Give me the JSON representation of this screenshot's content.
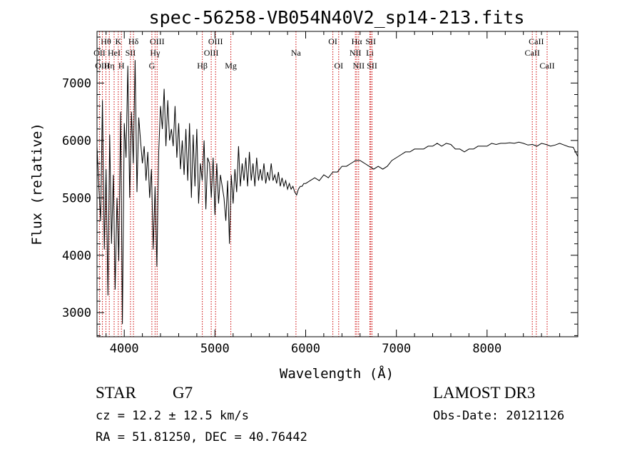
{
  "chart_data": {
    "type": "line",
    "title": "spec-56258-VB054N40V2_sp14-213.fits",
    "xlabel": "Wavelength (Å)",
    "ylabel": "Flux (relative)",
    "xlim": [
      3700,
      9000
    ],
    "ylim": [
      2580,
      7900
    ],
    "xticks": [
      4000,
      5000,
      6000,
      7000,
      8000
    ],
    "yticks": [
      3000,
      4000,
      5000,
      6000,
      7000
    ],
    "series": [
      {
        "name": "spectrum",
        "x": [
          3700,
          3720,
          3740,
          3760,
          3780,
          3800,
          3820,
          3840,
          3860,
          3880,
          3900,
          3920,
          3940,
          3960,
          3980,
          4000,
          4020,
          4040,
          4060,
          4080,
          4100,
          4120,
          4140,
          4160,
          4180,
          4200,
          4220,
          4240,
          4260,
          4280,
          4300,
          4320,
          4340,
          4360,
          4380,
          4400,
          4420,
          4440,
          4460,
          4480,
          4500,
          4520,
          4540,
          4560,
          4580,
          4600,
          4620,
          4640,
          4660,
          4680,
          4700,
          4720,
          4740,
          4760,
          4780,
          4800,
          4820,
          4840,
          4860,
          4880,
          4900,
          4920,
          4940,
          4960,
          4980,
          5000,
          5020,
          5040,
          5060,
          5080,
          5100,
          5120,
          5140,
          5160,
          5180,
          5200,
          5220,
          5240,
          5260,
          5280,
          5300,
          5320,
          5340,
          5360,
          5380,
          5400,
          5420,
          5440,
          5460,
          5480,
          5500,
          5520,
          5540,
          5560,
          5580,
          5600,
          5620,
          5640,
          5660,
          5680,
          5700,
          5720,
          5740,
          5760,
          5780,
          5800,
          5820,
          5840,
          5860,
          5880,
          5900,
          5920,
          5940,
          5960,
          5980,
          6000,
          6050,
          6100,
          6150,
          6200,
          6250,
          6300,
          6350,
          6400,
          6450,
          6500,
          6550,
          6600,
          6650,
          6700,
          6750,
          6800,
          6850,
          6900,
          6950,
          7000,
          7050,
          7100,
          7150,
          7200,
          7250,
          7300,
          7350,
          7400,
          7450,
          7500,
          7550,
          7600,
          7650,
          7700,
          7750,
          7800,
          7850,
          7900,
          7950,
          8000,
          8050,
          8100,
          8150,
          8200,
          8250,
          8300,
          8350,
          8400,
          8450,
          8500,
          8550,
          8600,
          8650,
          8700,
          8750,
          8800,
          8850,
          8900,
          8950,
          9000
        ],
        "y": [
          5900,
          5200,
          4600,
          6700,
          4100,
          5500,
          3300,
          6100,
          4200,
          5400,
          3400,
          5000,
          3900,
          6500,
          2800,
          6300,
          5700,
          7300,
          5000,
          6500,
          5600,
          7400,
          5100,
          6400,
          6000,
          5600,
          5900,
          5300,
          5800,
          5000,
          5500,
          4100,
          5200,
          3800,
          5800,
          6600,
          6200,
          6900,
          5900,
          6700,
          6000,
          6200,
          5900,
          6600,
          5700,
          6300,
          5500,
          6000,
          5400,
          6200,
          5300,
          6300,
          5000,
          6100,
          5200,
          6200,
          4900,
          5600,
          5300,
          6000,
          4800,
          5700,
          5600,
          5000,
          5700,
          4700,
          5600,
          4900,
          5400,
          5200,
          5000,
          4600,
          5300,
          4200,
          5400,
          4900,
          5500,
          5100,
          5900,
          5200,
          5600,
          5300,
          5700,
          5200,
          5800,
          5300,
          5600,
          5200,
          5700,
          5300,
          5500,
          5300,
          5600,
          5250,
          5450,
          5300,
          5600,
          5300,
          5400,
          5250,
          5450,
          5200,
          5350,
          5200,
          5300,
          5150,
          5250,
          5150,
          5200,
          5100,
          5050,
          5150,
          5200,
          5200,
          5250,
          5250,
          5300,
          5350,
          5300,
          5400,
          5350,
          5450,
          5450,
          5550,
          5550,
          5600,
          5650,
          5650,
          5600,
          5550,
          5500,
          5550,
          5500,
          5550,
          5650,
          5700,
          5750,
          5800,
          5800,
          5850,
          5850,
          5850,
          5900,
          5900,
          5950,
          5900,
          5950,
          5930,
          5850,
          5850,
          5800,
          5850,
          5850,
          5900,
          5900,
          5900,
          5950,
          5930,
          5950,
          5950,
          5960,
          5950,
          5970,
          5950,
          5920,
          5930,
          5900,
          5950,
          5930,
          5900,
          5920,
          5950,
          5920,
          5890,
          5880,
          5720
        ]
      }
    ],
    "line_markers": [
      {
        "label": "Hθ",
        "wavelength": 3798,
        "row": 0
      },
      {
        "label": "OII",
        "wavelength": 3727,
        "row": 1
      },
      {
        "label": "OIII",
        "wavelength": 3760,
        "row": 2
      },
      {
        "label": "Hη",
        "wavelength": 3835,
        "row": 2
      },
      {
        "label": "HeI",
        "wavelength": 3889,
        "row": 1
      },
      {
        "label": "K",
        "wavelength": 3934,
        "row": 0
      },
      {
        "label": "H",
        "wavelength": 3969,
        "row": 2
      },
      {
        "label": "SII",
        "wavelength": 4069,
        "row": 1
      },
      {
        "label": "Hδ",
        "wavelength": 4102,
        "row": 0
      },
      {
        "label": "OIII",
        "wavelength": 4363,
        "row": 0
      },
      {
        "label": "Hγ",
        "wavelength": 4340,
        "row": 1
      },
      {
        "label": "G",
        "wavelength": 4305,
        "row": 2
      },
      {
        "label": "Hβ",
        "wavelength": 4861,
        "row": 2
      },
      {
        "label": "OIII",
        "wavelength": 5007,
        "row": 0
      },
      {
        "label": "OIII",
        "wavelength": 4959,
        "row": 1
      },
      {
        "label": "Mg",
        "wavelength": 5175,
        "row": 2
      },
      {
        "label": "Na",
        "wavelength": 5893,
        "row": 1
      },
      {
        "label": "OI",
        "wavelength": 6300,
        "row": 0
      },
      {
        "label": "OI",
        "wavelength": 6364,
        "row": 2
      },
      {
        "label": "Hα",
        "wavelength": 6563,
        "row": 0
      },
      {
        "label": "NII",
        "wavelength": 6548,
        "row": 1
      },
      {
        "label": "NII",
        "wavelength": 6584,
        "row": 2
      },
      {
        "label": "SII",
        "wavelength": 6717,
        "row": 0
      },
      {
        "label": "Li",
        "wavelength": 6708,
        "row": 1
      },
      {
        "label": "SII",
        "wavelength": 6731,
        "row": 2
      },
      {
        "label": "CaII",
        "wavelength": 8542,
        "row": 0
      },
      {
        "label": "CaII",
        "wavelength": 8498,
        "row": 1
      },
      {
        "label": "CaII",
        "wavelength": 8662,
        "row": 2
      }
    ],
    "marker_color": "#cc0000",
    "line_color": "#000000"
  },
  "info": {
    "class": "STAR",
    "subclass": "G7",
    "survey": "LAMOST DR3",
    "cz": "cz = 12.2 ± 12.5 km/s",
    "obs_date": "Obs-Date: 20121126",
    "coords": "RA =  51.81250, DEC =  40.76442"
  }
}
